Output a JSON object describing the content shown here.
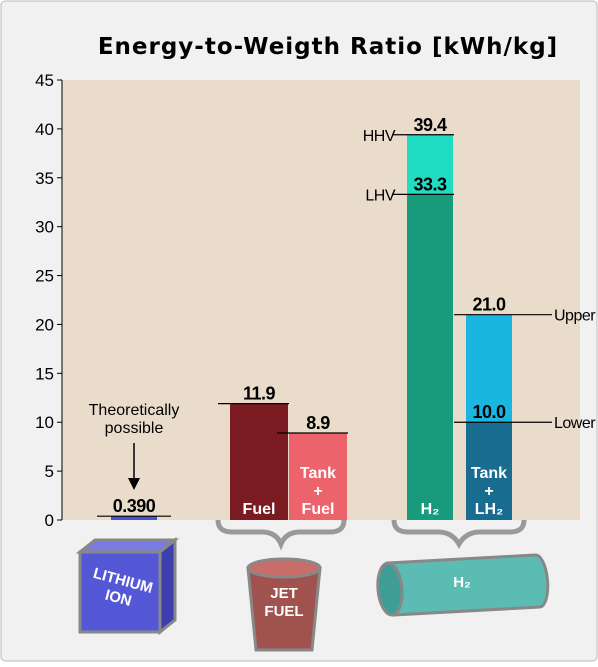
{
  "chart_data": {
    "type": "bar",
    "title": "Energy-to-Weigth Ratio [kWh/kg]",
    "ylim": [
      0,
      45
    ],
    "yticks": [
      0,
      5,
      10,
      15,
      20,
      25,
      30,
      35,
      40,
      45
    ],
    "background": "#eadccb",
    "columns": [
      {
        "levels": [
          {
            "value": 0.39,
            "value_label": "0.390",
            "color": "#4c4fd0"
          }
        ],
        "text": []
      },
      {
        "levels": [
          {
            "value": 11.9,
            "color": "#7a1b22"
          }
        ],
        "text": [
          "Fuel"
        ]
      },
      {
        "levels": [
          {
            "value": 8.9,
            "color": "#ec636b"
          }
        ],
        "text": [
          "Tank",
          "+",
          "Fuel"
        ]
      },
      {
        "levels": [
          {
            "value": 39.4,
            "name": "HHV",
            "color": "#1fdcc3"
          },
          {
            "value": 33.3,
            "name": "LHV",
            "color": "#189a7d"
          }
        ],
        "text": [
          "H₂"
        ]
      },
      {
        "levels": [
          {
            "value": 21.0,
            "value_label": "21.0",
            "name": "Upper",
            "color": "#19b6e2"
          },
          {
            "value": 10.0,
            "value_label": "10.0",
            "name": "Lower",
            "color": "#176c90"
          }
        ],
        "text": [
          "Tank",
          "+",
          "LH₂"
        ]
      }
    ],
    "annotation": [
      "Theoretically",
      "possible"
    ],
    "groups": [
      [
        "LITHIUM",
        "ION"
      ],
      [
        "JET",
        "FUEL"
      ],
      [
        "H₂"
      ]
    ]
  }
}
